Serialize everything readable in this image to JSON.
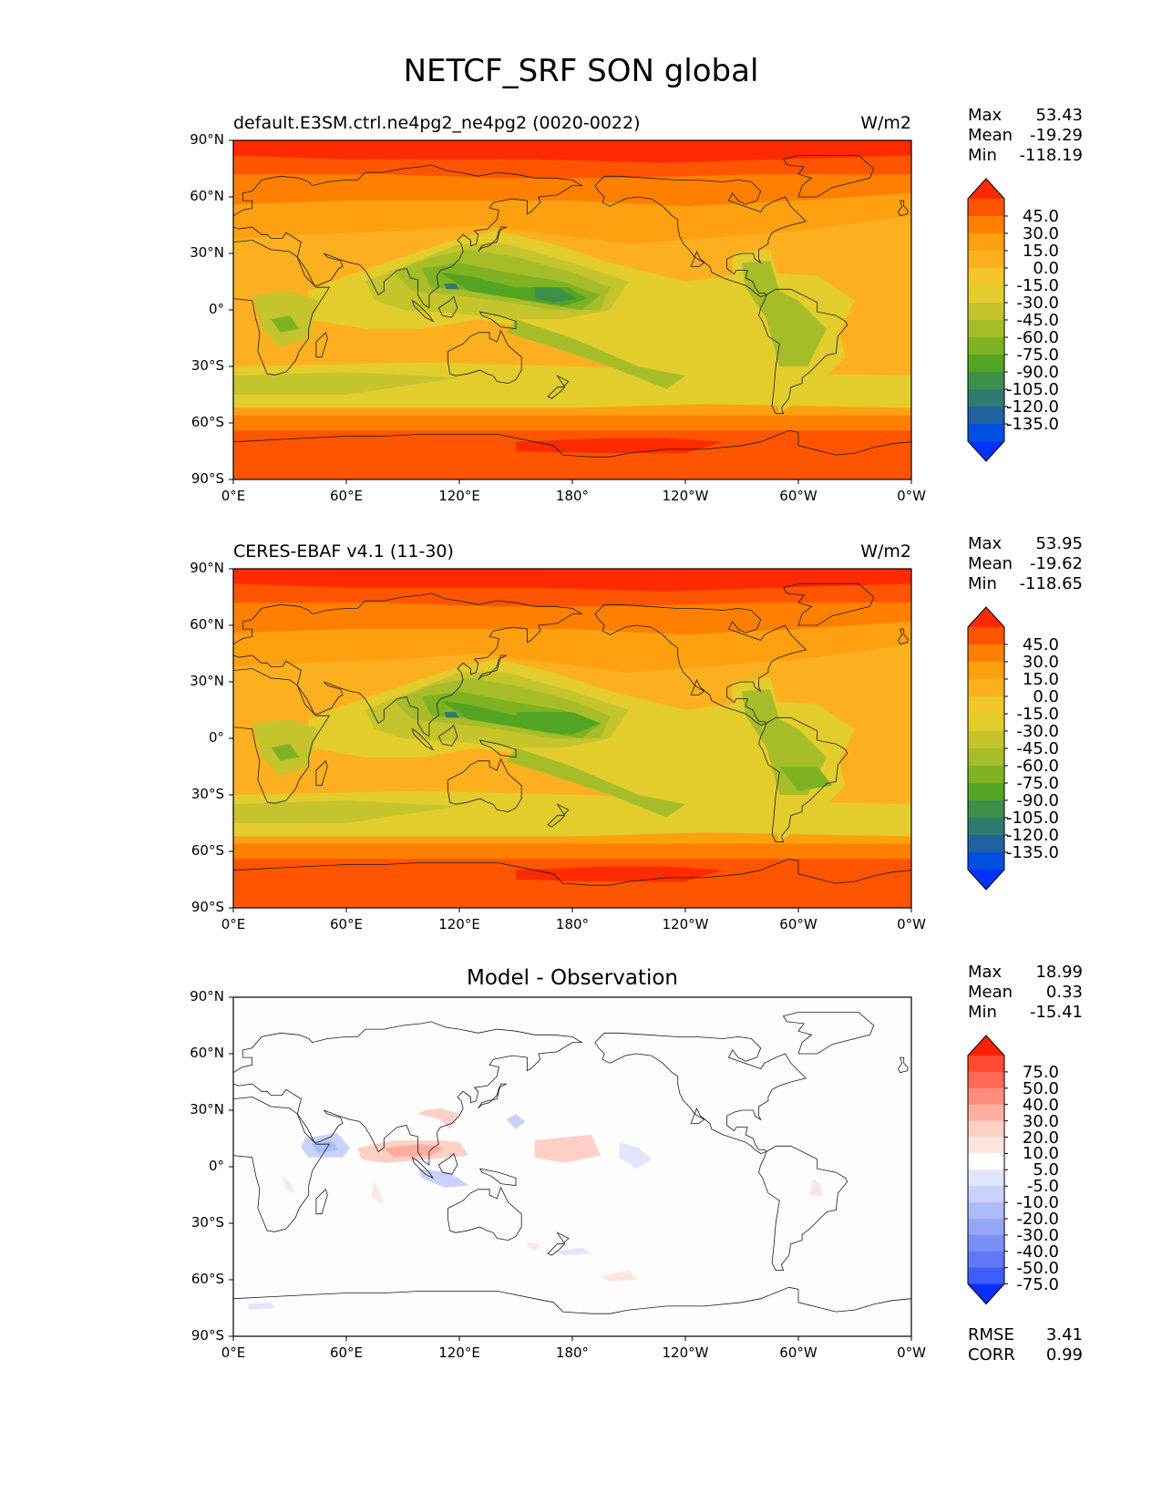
{
  "figure_title": "NETCF_SRF SON global",
  "lat_ticks": [
    "90°N",
    "60°N",
    "30°N",
    "0°",
    "30°S",
    "60°S",
    "90°S"
  ],
  "lon_ticks": [
    "0°E",
    "60°E",
    "120°E",
    "180°",
    "120°W",
    "60°W",
    "0°W"
  ],
  "panels": [
    {
      "id": "model",
      "title_left": "default.E3SM.ctrl.ne4pg2_ne4pg2 (0020-0022)",
      "title_right": "W/m2",
      "title_center": "",
      "stats": {
        "max_label": "Max",
        "max": "53.43",
        "mean_label": "Mean",
        "mean": "-19.29",
        "min_label": "Min",
        "min": "-118.19"
      },
      "colorbar_labels": [
        "45.0",
        "30.0",
        "15.0",
        "0.0",
        "-15.0",
        "-30.0",
        "-45.0",
        "-60.0",
        "-75.0",
        "-90.0",
        "-105.0",
        "-120.0",
        "-135.0"
      ]
    },
    {
      "id": "obs",
      "title_left": "CERES-EBAF v4.1 (11-30)",
      "title_right": "W/m2",
      "title_center": "",
      "stats": {
        "max_label": "Max",
        "max": "53.95",
        "mean_label": "Mean",
        "mean": "-19.62",
        "min_label": "Min",
        "min": "-118.65"
      },
      "colorbar_labels": [
        "45.0",
        "30.0",
        "15.0",
        "0.0",
        "-15.0",
        "-30.0",
        "-45.0",
        "-60.0",
        "-75.0",
        "-90.0",
        "-105.0",
        "-120.0",
        "-135.0"
      ]
    },
    {
      "id": "diff",
      "title_left": "",
      "title_right": "",
      "title_center": "Model - Observation",
      "stats": {
        "max_label": "Max",
        "max": "18.99",
        "mean_label": "Mean",
        "mean": "0.33",
        "min_label": "Min",
        "min": "-15.41"
      },
      "colorbar_labels": [
        "75.0",
        "50.0",
        "40.0",
        "30.0",
        "20.0",
        "10.0",
        "5.0",
        "-5.0",
        "-10.0",
        "-20.0",
        "-30.0",
        "-40.0",
        "-50.0",
        "-75.0"
      ],
      "extra_stats": {
        "rmse_label": "RMSE",
        "rmse": "3.41",
        "corr_label": "CORR",
        "corr": "0.99"
      }
    }
  ],
  "colors": {
    "field_scale": [
      "#ff2a00",
      "#ff5500",
      "#ff8000",
      "#fea010",
      "#fdb01f",
      "#f0c628",
      "#e3cd2d",
      "#c5c42c",
      "#a6bd29",
      "#7fb223",
      "#53a423",
      "#3e8f4a",
      "#2f7b6f",
      "#2261a0",
      "#0050e0",
      "#0033ff"
    ],
    "diff_scale": [
      "#ff2200",
      "#fd4a30",
      "#fd6a55",
      "#fc8e7c",
      "#fdaea0",
      "#fed0c5",
      "#fee6e0",
      "#ffffff",
      "#e1e6fd",
      "#c8d2fc",
      "#aebbf9",
      "#95a6f7",
      "#7b90f6",
      "#6178f6",
      "#3f5df8",
      "#0a2dff"
    ]
  }
}
